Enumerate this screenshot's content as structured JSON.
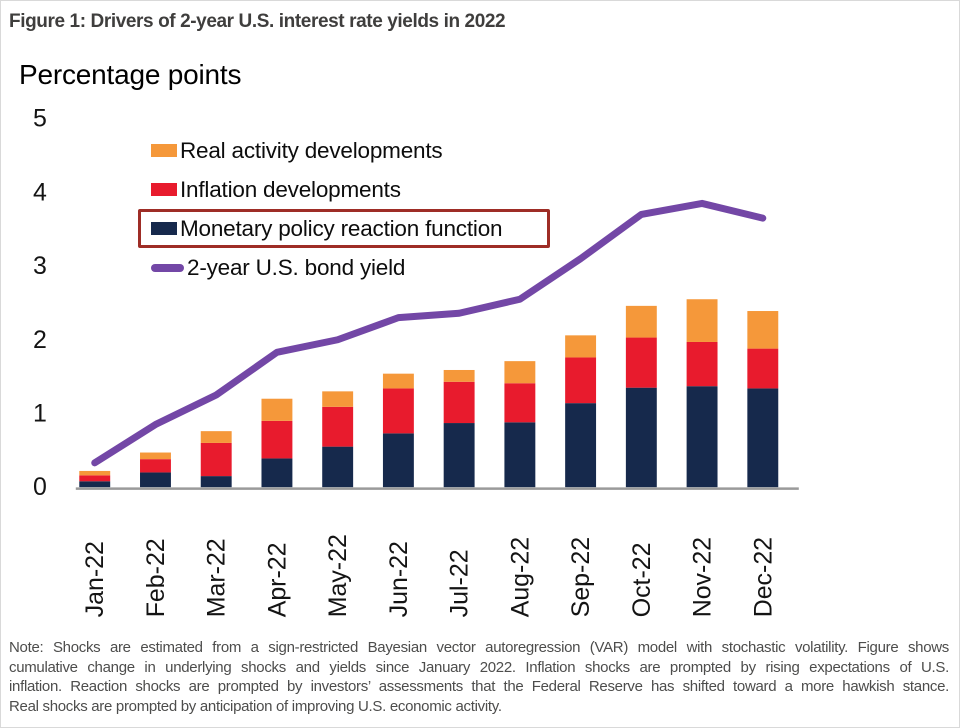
{
  "figure_title": "Figure 1: Drivers of 2-year U.S. interest rate yields in 2022",
  "axis_title": "Percentage points",
  "colors": {
    "orange": "#f5983a",
    "red": "#e81b2d",
    "navy": "#16294c",
    "purple": "#7347a6",
    "highlight_box": "#9e2d26",
    "axis_line": "#9a9a9a",
    "title_text": "#3f3e3d",
    "note_text": "#4d4d4c"
  },
  "legend": [
    {
      "label": "Real activity developments",
      "swatch": "square",
      "color_key": "orange",
      "highlighted": false
    },
    {
      "label": "Inflation developments",
      "swatch": "square",
      "color_key": "red",
      "highlighted": false
    },
    {
      "label": "Monetary policy reaction function",
      "swatch": "square",
      "color_key": "navy",
      "highlighted": true
    },
    {
      "label": "2-year U.S. bond yield",
      "swatch": "line",
      "color_key": "purple",
      "highlighted": false
    }
  ],
  "chart_data": {
    "type": "bar",
    "subtype": "stacked bars with line overlay",
    "title": "Figure 1: Drivers of 2-year U.S. interest rate yields in 2022",
    "ylabel": "Percentage points",
    "xlabel": "",
    "ylim": [
      0,
      5
    ],
    "yticks": [
      0,
      1,
      2,
      3,
      4,
      5
    ],
    "grid": false,
    "legend_position": "upper-left-inside",
    "categories": [
      "Jan-22",
      "Feb-22",
      "Mar-22",
      "Apr-22",
      "May-22",
      "Jun-22",
      "Jul-22",
      "Aug-22",
      "Sep-22",
      "Oct-22",
      "Nov-22",
      "Dec-22"
    ],
    "series": [
      {
        "name": "Monetary policy reaction function",
        "type": "bar",
        "color_key": "navy",
        "values": [
          0.08,
          0.2,
          0.15,
          0.39,
          0.55,
          0.73,
          0.87,
          0.88,
          1.14,
          1.35,
          1.37,
          1.34
        ]
      },
      {
        "name": "Inflation developments",
        "type": "bar",
        "color_key": "red",
        "values": [
          0.08,
          0.18,
          0.45,
          0.51,
          0.54,
          0.61,
          0.56,
          0.53,
          0.62,
          0.68,
          0.6,
          0.54
        ]
      },
      {
        "name": "Real activity developments",
        "type": "bar",
        "color_key": "orange",
        "values": [
          0.06,
          0.09,
          0.16,
          0.3,
          0.21,
          0.2,
          0.16,
          0.3,
          0.3,
          0.43,
          0.58,
          0.51
        ]
      },
      {
        "name": "2-year U.S. bond yield",
        "type": "line",
        "color_key": "purple",
        "values": [
          0.33,
          0.85,
          1.25,
          1.83,
          2.0,
          2.3,
          2.36,
          2.55,
          3.1,
          3.7,
          3.85,
          3.65
        ]
      }
    ]
  },
  "note_lines": [
    "Note: Shocks are estimated from a sign-restricted Bayesian vector autoregression (VAR) model with stochastic volatility. Figure shows",
    "cumulative change in underlying shocks and yields since January 2022. Inflation shocks are prompted by rising expectations of U.S.",
    "inflation. Reaction shocks are prompted by investors’ assessments that the Federal Reserve has shifted toward a more hawkish stance.",
    "Real shocks are prompted by anticipation of improving U.S. economic activity."
  ]
}
